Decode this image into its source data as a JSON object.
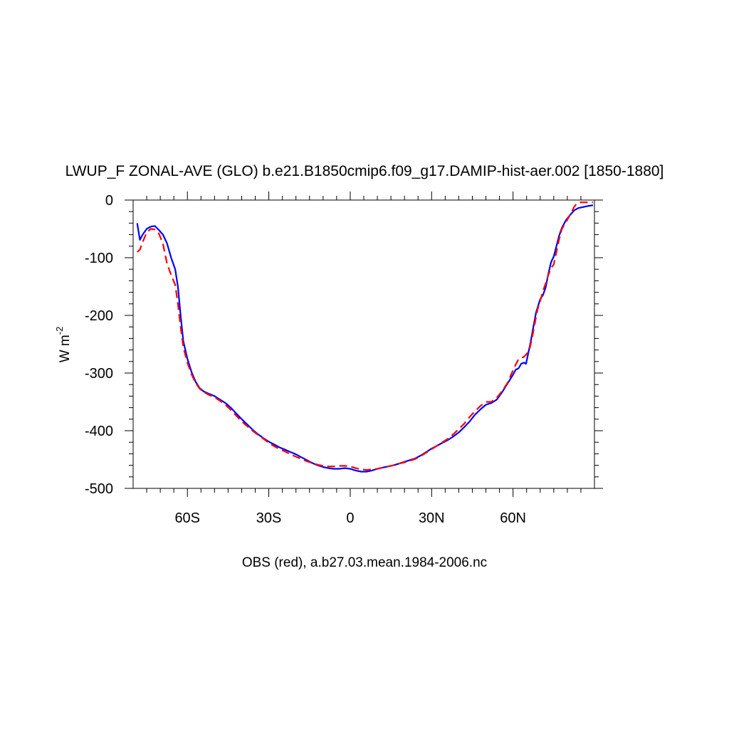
{
  "chart_data": {
    "type": "line",
    "title": "LWUP_F ZONAL-AVE (GLO) b.e21.B1850cmip6.f09_g17.DAMIP-hist-aer.002 [1850-1880]",
    "subtitle": "OBS (red), a.b27.03.mean.1984-2006.nc",
    "ylabel": "W m",
    "ylabel_superscript": "-2",
    "xlabel": "",
    "xlim": [
      -80,
      90
    ],
    "ylim": [
      -500,
      0
    ],
    "x_ticks": [
      {
        "value": -60,
        "label": "60S"
      },
      {
        "value": -30,
        "label": "30S"
      },
      {
        "value": 0,
        "label": "0"
      },
      {
        "value": 30,
        "label": "30N"
      },
      {
        "value": 60,
        "label": "60N"
      }
    ],
    "y_ticks": [
      {
        "value": 0,
        "label": "0"
      },
      {
        "value": -100,
        "label": "-100"
      },
      {
        "value": -200,
        "label": "-200"
      },
      {
        "value": -300,
        "label": "-300"
      },
      {
        "value": -400,
        "label": "-400"
      },
      {
        "value": -500,
        "label": "-500"
      }
    ],
    "grid": false,
    "series": [
      {
        "color": "#0000ff",
        "dash": "solid",
        "points": [
          [
            -78.5,
            -40
          ],
          [
            -77.5,
            -69
          ],
          [
            -76.5,
            -60
          ],
          [
            -75,
            -50
          ],
          [
            -73.5,
            -46
          ],
          [
            -72,
            -45
          ],
          [
            -70.5,
            -52
          ],
          [
            -69,
            -60
          ],
          [
            -67.5,
            -75
          ],
          [
            -66,
            -100
          ],
          [
            -64.5,
            -120
          ],
          [
            -63.5,
            -150
          ],
          [
            -62.5,
            -200
          ],
          [
            -61.5,
            -245
          ],
          [
            -60,
            -275
          ],
          [
            -58.5,
            -298
          ],
          [
            -57,
            -315
          ],
          [
            -55.5,
            -326
          ],
          [
            -54,
            -332
          ],
          [
            -52,
            -336
          ],
          [
            -50,
            -340
          ],
          [
            -48,
            -346
          ],
          [
            -46,
            -352
          ],
          [
            -44,
            -360
          ],
          [
            -42,
            -370
          ],
          [
            -40,
            -380
          ],
          [
            -38,
            -389
          ],
          [
            -36,
            -398
          ],
          [
            -34,
            -406
          ],
          [
            -32,
            -413
          ],
          [
            -30,
            -419
          ],
          [
            -28,
            -424
          ],
          [
            -26,
            -429
          ],
          [
            -24,
            -433
          ],
          [
            -22,
            -437
          ],
          [
            -20,
            -441
          ],
          [
            -18,
            -446
          ],
          [
            -16,
            -451
          ],
          [
            -14,
            -456
          ],
          [
            -12,
            -460
          ],
          [
            -10,
            -463
          ],
          [
            -8,
            -465
          ],
          [
            -6,
            -466
          ],
          [
            -4,
            -466
          ],
          [
            -2,
            -465
          ],
          [
            0,
            -466
          ],
          [
            2,
            -469
          ],
          [
            4,
            -471
          ],
          [
            6,
            -471
          ],
          [
            8,
            -469
          ],
          [
            10,
            -466
          ],
          [
            12,
            -464
          ],
          [
            14,
            -462
          ],
          [
            16,
            -460
          ],
          [
            18,
            -457
          ],
          [
            20,
            -454
          ],
          [
            22,
            -451
          ],
          [
            24,
            -448
          ],
          [
            26,
            -443
          ],
          [
            28,
            -437
          ],
          [
            30,
            -431
          ],
          [
            32,
            -426
          ],
          [
            34,
            -421
          ],
          [
            36,
            -416
          ],
          [
            38,
            -410
          ],
          [
            40,
            -403
          ],
          [
            42,
            -394
          ],
          [
            44,
            -384
          ],
          [
            46,
            -372
          ],
          [
            48,
            -363
          ],
          [
            50,
            -355
          ],
          [
            52,
            -352
          ],
          [
            54,
            -346
          ],
          [
            56,
            -333
          ],
          [
            58,
            -318
          ],
          [
            60,
            -303
          ],
          [
            61,
            -294
          ],
          [
            62,
            -292
          ],
          [
            63,
            -284
          ],
          [
            64,
            -282
          ],
          [
            64.8,
            -284
          ],
          [
            65.5,
            -268
          ],
          [
            66.5,
            -246
          ],
          [
            67.5,
            -220
          ],
          [
            68.5,
            -195
          ],
          [
            70,
            -172
          ],
          [
            71,
            -165
          ],
          [
            72,
            -152
          ],
          [
            73,
            -128
          ],
          [
            74,
            -108
          ],
          [
            75,
            -98
          ],
          [
            76,
            -80
          ],
          [
            77,
            -62
          ],
          [
            78,
            -48
          ],
          [
            79.5,
            -35
          ],
          [
            81,
            -26
          ],
          [
            82.5,
            -18
          ],
          [
            84,
            -14
          ],
          [
            86,
            -12
          ],
          [
            88,
            -10
          ],
          [
            89.5,
            -9
          ]
        ]
      },
      {
        "color": "#ff0000",
        "dash": "dashed",
        "points": [
          [
            -78.5,
            -90
          ],
          [
            -77.5,
            -86
          ],
          [
            -76.5,
            -73
          ],
          [
            -75,
            -56
          ],
          [
            -73.5,
            -50
          ],
          [
            -72,
            -51
          ],
          [
            -70.5,
            -58
          ],
          [
            -69,
            -76
          ],
          [
            -67.5,
            -110
          ],
          [
            -66,
            -130
          ],
          [
            -64.5,
            -147
          ],
          [
            -63.5,
            -180
          ],
          [
            -62.5,
            -220
          ],
          [
            -61.5,
            -255
          ],
          [
            -60,
            -282
          ],
          [
            -58.5,
            -302
          ],
          [
            -57,
            -317
          ],
          [
            -55.5,
            -327
          ],
          [
            -54,
            -333
          ],
          [
            -52,
            -338
          ],
          [
            -50,
            -342
          ],
          [
            -48,
            -348
          ],
          [
            -46,
            -355
          ],
          [
            -44,
            -364
          ],
          [
            -42,
            -374
          ],
          [
            -40,
            -384
          ],
          [
            -38,
            -392
          ],
          [
            -36,
            -400
          ],
          [
            -34,
            -407
          ],
          [
            -32,
            -414
          ],
          [
            -30,
            -421
          ],
          [
            -28,
            -427
          ],
          [
            -26,
            -432
          ],
          [
            -24,
            -436
          ],
          [
            -22,
            -441
          ],
          [
            -20,
            -445
          ],
          [
            -18,
            -449
          ],
          [
            -16,
            -453
          ],
          [
            -14,
            -456
          ],
          [
            -12,
            -459
          ],
          [
            -10,
            -461
          ],
          [
            -8,
            -462
          ],
          [
            -6,
            -462
          ],
          [
            -4,
            -461
          ],
          [
            -2,
            -461
          ],
          [
            0,
            -462
          ],
          [
            2,
            -465
          ],
          [
            4,
            -467
          ],
          [
            6,
            -468
          ],
          [
            8,
            -467
          ],
          [
            10,
            -466
          ],
          [
            12,
            -464
          ],
          [
            14,
            -462
          ],
          [
            16,
            -460
          ],
          [
            18,
            -457
          ],
          [
            20,
            -455
          ],
          [
            22,
            -452
          ],
          [
            24,
            -449
          ],
          [
            26,
            -444
          ],
          [
            28,
            -438
          ],
          [
            30,
            -432
          ],
          [
            32,
            -426
          ],
          [
            34,
            -420
          ],
          [
            36,
            -414
          ],
          [
            38,
            -406
          ],
          [
            40,
            -397
          ],
          [
            42,
            -388
          ],
          [
            44,
            -376
          ],
          [
            46,
            -366
          ],
          [
            48,
            -357
          ],
          [
            50,
            -350
          ],
          [
            52,
            -350
          ],
          [
            54,
            -343
          ],
          [
            56,
            -331
          ],
          [
            58,
            -317
          ],
          [
            60,
            -295
          ],
          [
            61,
            -285
          ],
          [
            62,
            -276
          ],
          [
            63,
            -274
          ],
          [
            64,
            -272
          ],
          [
            65,
            -267
          ],
          [
            66,
            -260
          ],
          [
            67,
            -240
          ],
          [
            68,
            -215
          ],
          [
            69,
            -190
          ],
          [
            70,
            -175
          ],
          [
            71,
            -158
          ],
          [
            72,
            -145
          ],
          [
            73,
            -130
          ],
          [
            74,
            -118
          ],
          [
            75,
            -112
          ],
          [
            76,
            -90
          ],
          [
            77,
            -68
          ],
          [
            78,
            -50
          ],
          [
            79.5,
            -38
          ],
          [
            80.5,
            -30
          ],
          [
            81.5,
            -22
          ],
          [
            82.5,
            -12
          ],
          [
            83.5,
            -6
          ],
          [
            85,
            -4
          ],
          [
            88,
            -4
          ],
          [
            89.5,
            -4
          ]
        ]
      }
    ]
  }
}
